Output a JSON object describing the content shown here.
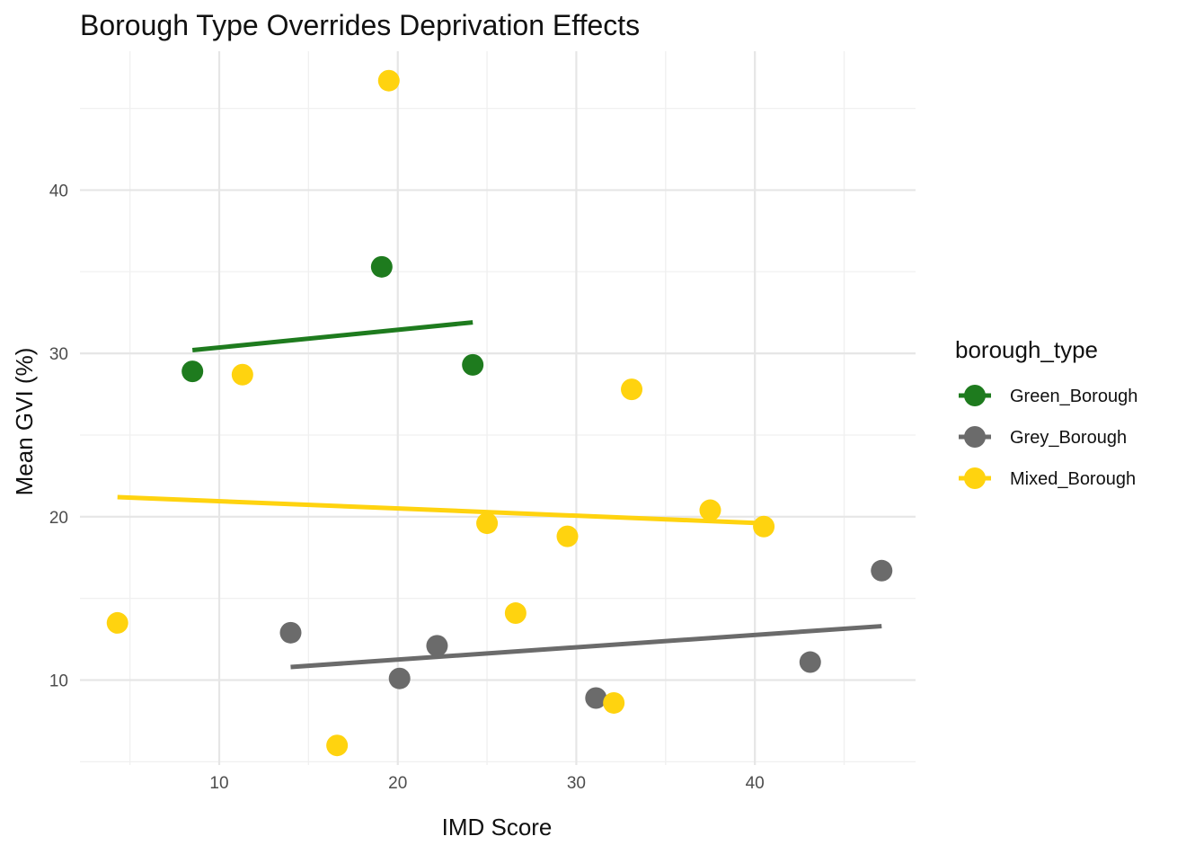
{
  "chart_data": {
    "type": "scatter",
    "title": "Borough Type Overrides Deprivation Effects",
    "xlabel": "IMD Score",
    "ylabel": "Mean GVI (%)",
    "xlim": [
      2.2,
      49
    ],
    "ylim": [
      4.8,
      48.5
    ],
    "x_ticks": [
      10,
      20,
      30,
      40
    ],
    "y_ticks": [
      10,
      20,
      30,
      40
    ],
    "x_minor_ticks": [
      5,
      15,
      25,
      35,
      45
    ],
    "y_minor_ticks": [
      5,
      15,
      25,
      35,
      45
    ],
    "grid": true,
    "legend": {
      "title": "borough_type",
      "position": "right"
    },
    "series": [
      {
        "name": "Green_Borough",
        "color": "#1e7b1e",
        "points": [
          {
            "x": 8.5,
            "y": 28.9
          },
          {
            "x": 19.1,
            "y": 35.3
          },
          {
            "x": 24.2,
            "y": 29.3
          }
        ],
        "trend": [
          {
            "x": 8.5,
            "y": 30.2
          },
          {
            "x": 24.2,
            "y": 31.9
          }
        ]
      },
      {
        "name": "Grey_Borough",
        "color": "#6b6b6b",
        "points": [
          {
            "x": 14.0,
            "y": 12.9
          },
          {
            "x": 20.1,
            "y": 10.1
          },
          {
            "x": 22.2,
            "y": 12.1
          },
          {
            "x": 31.1,
            "y": 8.9
          },
          {
            "x": 43.1,
            "y": 11.1
          },
          {
            "x": 47.1,
            "y": 16.7
          }
        ],
        "trend": [
          {
            "x": 14.0,
            "y": 10.8
          },
          {
            "x": 47.1,
            "y": 13.3
          }
        ]
      },
      {
        "name": "Mixed_Borough",
        "color": "#ffd30f",
        "points": [
          {
            "x": 4.3,
            "y": 13.5
          },
          {
            "x": 11.3,
            "y": 28.7
          },
          {
            "x": 16.6,
            "y": 6.0
          },
          {
            "x": 19.5,
            "y": 46.7
          },
          {
            "x": 25.0,
            "y": 19.6
          },
          {
            "x": 26.6,
            "y": 14.1
          },
          {
            "x": 29.5,
            "y": 18.8
          },
          {
            "x": 32.1,
            "y": 8.6
          },
          {
            "x": 33.1,
            "y": 27.8
          },
          {
            "x": 37.5,
            "y": 20.4
          },
          {
            "x": 40.5,
            "y": 19.4
          }
        ],
        "trend": [
          {
            "x": 4.3,
            "y": 21.2
          },
          {
            "x": 40.5,
            "y": 19.6
          }
        ]
      }
    ]
  }
}
